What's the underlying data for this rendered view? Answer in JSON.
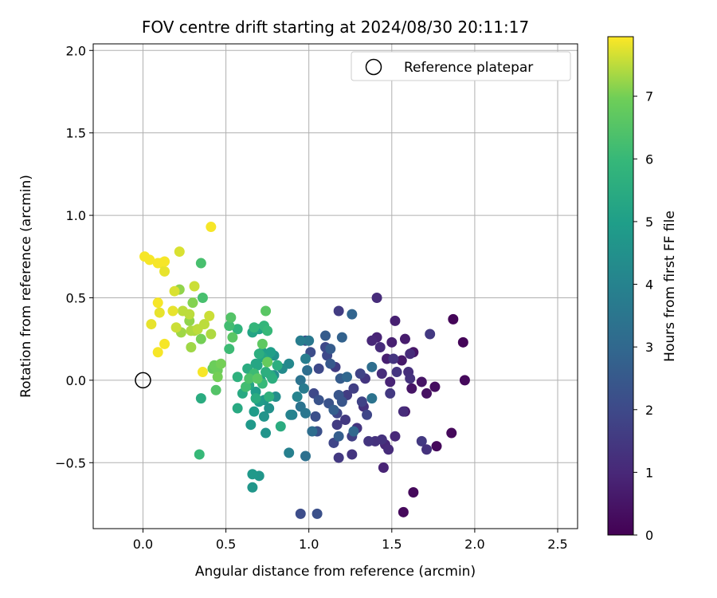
{
  "chart_data": {
    "type": "scatter",
    "title": "FOV centre drift starting at 2024/08/30 20:11:17",
    "xlabel": "Angular distance from reference (arcmin)",
    "ylabel": "Rotation from reference (arcmin)",
    "xlim": [
      -0.3,
      2.62
    ],
    "ylim": [
      -0.9,
      2.04
    ],
    "xticks": [
      0.0,
      0.5,
      1.0,
      1.5,
      2.0,
      2.5
    ],
    "xtick_labels": [
      "0.0",
      "0.5",
      "1.0",
      "1.5",
      "2.0",
      "2.5"
    ],
    "yticks": [
      -0.5,
      0.0,
      0.5,
      1.0,
      1.5,
      2.0
    ],
    "ytick_labels": [
      "−0.5",
      "0.0",
      "0.5",
      "1.0",
      "1.5",
      "2.0"
    ],
    "grid": true,
    "legend": {
      "position": "top-right",
      "label": "Reference platepar"
    },
    "reference_point": {
      "x": 0.0,
      "y": 0.0
    },
    "colorbar": {
      "label": "Hours from first FF file",
      "colormap": "viridis",
      "range": [
        0,
        7.95
      ],
      "ticks": [
        0,
        1,
        2,
        3,
        4,
        5,
        6,
        7
      ],
      "tick_labels": [
        "0",
        "1",
        "2",
        "3",
        "4",
        "5",
        "6",
        "7"
      ]
    },
    "points": [
      [
        1.87,
        0.37,
        0.1
      ],
      [
        1.93,
        0.23,
        0.1
      ],
      [
        1.94,
        0.0,
        0.2
      ],
      [
        1.86,
        -0.32,
        0.2
      ],
      [
        1.77,
        -0.4,
        0.2
      ],
      [
        1.63,
        -0.68,
        0.2
      ],
      [
        1.57,
        -0.8,
        0.2
      ],
      [
        1.76,
        -0.04,
        0.3
      ],
      [
        1.71,
        -0.08,
        0.4
      ],
      [
        1.68,
        -0.01,
        0.5
      ],
      [
        1.62,
        -0.05,
        0.5
      ],
      [
        1.58,
        -0.19,
        0.6
      ],
      [
        1.63,
        0.17,
        0.5
      ],
      [
        1.56,
        0.12,
        0.6
      ],
      [
        1.58,
        0.25,
        0.7
      ],
      [
        1.5,
        0.23,
        0.8
      ],
      [
        1.52,
        0.36,
        0.8
      ],
      [
        1.47,
        0.13,
        0.8
      ],
      [
        1.49,
        -0.01,
        0.9
      ],
      [
        1.45,
        -0.53,
        0.9
      ],
      [
        1.41,
        0.26,
        0.9
      ],
      [
        1.38,
        0.24,
        1.0
      ],
      [
        1.41,
        0.5,
        1.1
      ],
      [
        1.43,
        0.2,
        1.1
      ],
      [
        1.44,
        0.04,
        1.1
      ],
      [
        1.46,
        -0.39,
        1.0
      ],
      [
        1.48,
        -0.42,
        1.1
      ],
      [
        1.52,
        -0.34,
        1.0
      ],
      [
        1.57,
        -0.19,
        1.1
      ],
      [
        1.61,
        0.16,
        1.1
      ],
      [
        1.6,
        0.05,
        1.2
      ],
      [
        1.68,
        -0.37,
        1.5
      ],
      [
        1.73,
        0.28,
        1.5
      ],
      [
        1.71,
        -0.42,
        1.3
      ],
      [
        1.61,
        0.01,
        1.3
      ],
      [
        1.53,
        0.05,
        1.4
      ],
      [
        1.51,
        0.13,
        1.4
      ],
      [
        1.49,
        -0.08,
        1.5
      ],
      [
        1.44,
        -0.36,
        1.3
      ],
      [
        1.4,
        -0.37,
        1.3
      ],
      [
        1.36,
        -0.37,
        1.4
      ],
      [
        1.33,
        -0.16,
        1.3
      ],
      [
        1.34,
        0.01,
        1.4
      ],
      [
        1.29,
        -0.29,
        1.4
      ],
      [
        1.26,
        -0.45,
        1.4
      ],
      [
        1.22,
        -0.24,
        1.5
      ],
      [
        1.18,
        -0.47,
        1.5
      ],
      [
        1.18,
        0.42,
        1.6
      ],
      [
        1.17,
        -0.27,
        1.6
      ],
      [
        1.16,
        0.08,
        1.6
      ],
      [
        1.23,
        -0.09,
        1.6
      ],
      [
        1.26,
        -0.34,
        1.7
      ],
      [
        1.27,
        -0.05,
        1.7
      ],
      [
        1.32,
        -0.13,
        1.8
      ],
      [
        1.31,
        0.04,
        1.8
      ],
      [
        1.35,
        -0.21,
        1.9
      ],
      [
        1.17,
        -0.2,
        1.9
      ],
      [
        1.15,
        -0.38,
        1.9
      ],
      [
        1.11,
        0.15,
        2.0
      ],
      [
        1.1,
        0.2,
        2.0
      ],
      [
        1.06,
        0.07,
        2.0
      ],
      [
        1.03,
        -0.08,
        2.0
      ],
      [
        1.01,
        0.17,
        2.1
      ],
      [
        0.98,
        0.24,
        2.1
      ],
      [
        0.95,
        -0.81,
        2.1
      ],
      [
        1.05,
        -0.81,
        2.2
      ],
      [
        1.04,
        -0.22,
        2.2
      ],
      [
        1.05,
        -0.31,
        2.2
      ],
      [
        1.12,
        -0.14,
        2.3
      ],
      [
        1.06,
        -0.12,
        2.3
      ],
      [
        1.2,
        -0.13,
        2.4
      ],
      [
        1.18,
        -0.09,
        2.4
      ],
      [
        1.13,
        0.1,
        2.5
      ],
      [
        1.13,
        0.19,
        2.6
      ],
      [
        1.1,
        0.27,
        2.6
      ],
      [
        1.19,
        0.01,
        2.6
      ],
      [
        1.15,
        -0.18,
        2.7
      ],
      [
        1.18,
        -0.34,
        2.7
      ],
      [
        1.2,
        0.26,
        2.8
      ],
      [
        1.26,
        0.4,
        2.9
      ],
      [
        1.23,
        0.02,
        3.0
      ],
      [
        1.27,
        -0.31,
        3.0
      ],
      [
        1.38,
        0.08,
        3.2
      ],
      [
        1.38,
        -0.11,
        3.4
      ],
      [
        1.02,
        -0.31,
        3.2
      ],
      [
        0.98,
        -0.46,
        3.3
      ],
      [
        0.99,
        0.06,
        3.2
      ],
      [
        0.95,
        -0.16,
        3.4
      ],
      [
        0.95,
        0.0,
        3.4
      ],
      [
        0.98,
        -0.2,
        3.5
      ],
      [
        1.0,
        0.24,
        3.6
      ],
      [
        0.97,
        -0.05,
        3.7
      ],
      [
        0.98,
        0.13,
        3.8
      ],
      [
        0.95,
        0.24,
        3.8
      ],
      [
        0.9,
        -0.21,
        3.9
      ],
      [
        0.88,
        -0.44,
        3.9
      ],
      [
        0.89,
        -0.21,
        4.0
      ],
      [
        0.93,
        -0.1,
        4.0
      ],
      [
        0.88,
        0.1,
        4.2
      ],
      [
        0.84,
        0.07,
        4.3
      ],
      [
        0.8,
        -0.1,
        4.4
      ],
      [
        0.79,
        0.03,
        4.4
      ],
      [
        0.81,
        0.09,
        4.4
      ],
      [
        0.76,
        -0.17,
        4.5
      ],
      [
        0.79,
        0.15,
        4.5
      ],
      [
        0.73,
        -0.22,
        4.6
      ],
      [
        0.74,
        -0.32,
        4.6
      ],
      [
        0.73,
        -0.12,
        4.7
      ],
      [
        0.66,
        -0.65,
        4.7
      ],
      [
        0.7,
        -0.58,
        4.7
      ],
      [
        0.66,
        -0.57,
        4.8
      ],
      [
        0.65,
        -0.27,
        4.8
      ],
      [
        0.67,
        -0.19,
        4.9
      ],
      [
        0.7,
        -0.13,
        4.9
      ],
      [
        0.68,
        -0.07,
        4.9
      ],
      [
        0.72,
        0.17,
        5.0
      ],
      [
        0.71,
        0.0,
        5.0
      ],
      [
        0.77,
        0.17,
        5.0
      ],
      [
        0.75,
        0.12,
        5.1
      ],
      [
        0.7,
        0.31,
        5.1
      ],
      [
        0.66,
        0.29,
        5.2
      ],
      [
        0.72,
        0.14,
        5.2
      ],
      [
        0.69,
        0.09,
        5.3
      ],
      [
        0.68,
        0.1,
        5.3
      ],
      [
        0.64,
        -0.03,
        5.3
      ],
      [
        0.6,
        -0.08,
        5.4
      ],
      [
        0.57,
        -0.17,
        5.4
      ],
      [
        0.63,
        0.07,
        5.5
      ],
      [
        0.77,
        0.03,
        5.4
      ],
      [
        0.83,
        -0.28,
        5.5
      ],
      [
        0.68,
        -0.11,
        5.5
      ],
      [
        0.7,
        0.16,
        5.6
      ],
      [
        0.74,
        0.05,
        5.6
      ],
      [
        0.78,
        0.01,
        5.6
      ],
      [
        0.81,
        0.09,
        5.6
      ],
      [
        0.76,
        -0.1,
        5.7
      ],
      [
        0.57,
        0.02,
        5.7
      ],
      [
        0.35,
        -0.11,
        5.5
      ],
      [
        0.57,
        0.31,
        5.8
      ],
      [
        0.67,
        0.32,
        5.9
      ],
      [
        0.73,
        0.33,
        5.9
      ],
      [
        0.75,
        0.3,
        6.0
      ],
      [
        0.72,
        -0.02,
        6.0
      ],
      [
        0.67,
        0.04,
        6.1
      ],
      [
        0.62,
        -0.04,
        6.2
      ],
      [
        0.52,
        0.19,
        6.1
      ],
      [
        0.52,
        0.33,
        6.2
      ],
      [
        0.36,
        0.5,
        6.3
      ],
      [
        0.35,
        0.71,
        6.3
      ],
      [
        0.34,
        -0.45,
        6.0
      ],
      [
        0.44,
        -0.06,
        6.5
      ],
      [
        0.53,
        0.38,
        6.5
      ],
      [
        0.54,
        0.26,
        6.6
      ],
      [
        0.64,
        0.01,
        6.4
      ],
      [
        0.69,
        0.01,
        6.6
      ],
      [
        0.74,
        0.42,
        6.6
      ],
      [
        0.72,
        0.22,
        6.7
      ],
      [
        0.75,
        0.11,
        6.8
      ],
      [
        0.42,
        0.07,
        6.8
      ],
      [
        0.43,
        0.09,
        6.9
      ],
      [
        0.45,
        0.06,
        6.9
      ],
      [
        0.47,
        0.1,
        7.0
      ],
      [
        0.45,
        0.02,
        7.0
      ],
      [
        0.3,
        0.47,
        7.1
      ],
      [
        0.28,
        0.36,
        7.2
      ],
      [
        0.22,
        0.55,
        7.2
      ],
      [
        0.23,
        0.29,
        7.3
      ],
      [
        0.35,
        0.25,
        7.0
      ],
      [
        0.29,
        0.2,
        7.3
      ],
      [
        0.31,
        0.3,
        7.4
      ],
      [
        0.29,
        0.3,
        7.4
      ],
      [
        0.33,
        0.31,
        7.5
      ],
      [
        0.37,
        0.34,
        7.5
      ],
      [
        0.41,
        0.28,
        7.4
      ],
      [
        0.4,
        0.39,
        7.6
      ],
      [
        0.24,
        0.42,
        7.5
      ],
      [
        0.2,
        0.32,
        7.6
      ],
      [
        0.28,
        0.4,
        7.5
      ],
      [
        0.31,
        0.57,
        7.6
      ],
      [
        0.22,
        0.78,
        7.7
      ],
      [
        0.19,
        0.54,
        7.7
      ],
      [
        0.13,
        0.66,
        7.8
      ],
      [
        0.11,
        0.71,
        7.8
      ],
      [
        0.09,
        0.71,
        7.9
      ],
      [
        0.13,
        0.72,
        7.9
      ],
      [
        0.04,
        0.73,
        7.9
      ],
      [
        0.01,
        0.75,
        7.9
      ],
      [
        0.05,
        0.34,
        7.8
      ],
      [
        0.09,
        0.47,
        7.9
      ],
      [
        0.13,
        0.22,
        7.9
      ],
      [
        0.09,
        0.17,
        7.9
      ],
      [
        0.18,
        0.42,
        7.8
      ],
      [
        0.1,
        0.41,
        7.8
      ],
      [
        0.36,
        0.05,
        7.9
      ],
      [
        0.41,
        0.93,
        7.9
      ]
    ]
  }
}
